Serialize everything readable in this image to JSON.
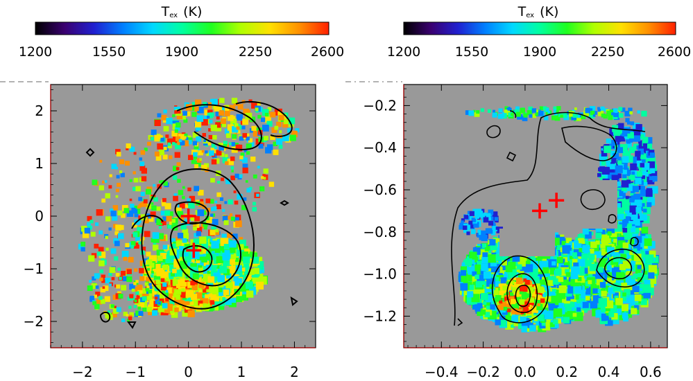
{
  "chart_data": [
    {
      "type": "heatmap",
      "title": "",
      "colorbar": {
        "label": "T",
        "label_sub": "ex",
        "units": "(K)",
        "ticks": [
          "1200",
          "1550",
          "1900",
          "2250",
          "2600"
        ],
        "range": [
          1200,
          2600
        ],
        "colormap": [
          "#000000",
          "#3a0070",
          "#2020d0",
          "#0080ff",
          "#00d8ff",
          "#00ffa0",
          "#20ff20",
          "#b0ff00",
          "#ffe000",
          "#ff9000",
          "#ff2000"
        ]
      },
      "xlim": [
        -2.6,
        2.4
      ],
      "ylim": [
        -2.5,
        2.5
      ],
      "x_ticks": [
        "−2",
        "−1",
        "0",
        "1",
        "2"
      ],
      "x_tick_values": [
        -2,
        -1,
        0,
        1,
        2
      ],
      "y_ticks": [
        "−2",
        "−1",
        "0",
        "1",
        "2"
      ],
      "y_tick_values": [
        -2,
        -1,
        0,
        1,
        2
      ],
      "background": "#999999",
      "markers": [
        {
          "x": 0.0,
          "y": 0.0,
          "symbol": "cross",
          "color": "#ff0000"
        },
        {
          "x": 0.1,
          "y": -0.65,
          "symbol": "cross",
          "color": "#ff0000"
        }
      ]
    },
    {
      "type": "heatmap",
      "title": "",
      "colorbar": {
        "label": "T",
        "label_sub": "ex",
        "units": "(K)",
        "ticks": [
          "1200",
          "1550",
          "1900",
          "2250",
          "2600"
        ],
        "range": [
          1200,
          2600
        ],
        "colormap": [
          "#000000",
          "#3a0070",
          "#2020d0",
          "#0080ff",
          "#00d8ff",
          "#00ffa0",
          "#20ff20",
          "#b0ff00",
          "#ffe000",
          "#ff9000",
          "#ff2000"
        ]
      },
      "xlim": [
        -0.58,
        0.68
      ],
      "ylim": [
        -1.35,
        -0.1
      ],
      "x_ticks": [
        "−0.4",
        "−0.2",
        "0.0",
        "0.2",
        "0.4",
        "0.6"
      ],
      "x_tick_values": [
        -0.4,
        -0.2,
        0.0,
        0.2,
        0.4,
        0.6
      ],
      "y_ticks": [
        "−0.2",
        "−0.4",
        "−0.6",
        "−0.8",
        "−1.0",
        "−1.2"
      ],
      "y_tick_values": [
        -0.2,
        -0.4,
        -0.6,
        -0.8,
        -1.0,
        -1.2
      ],
      "background": "#999999",
      "markers": [
        {
          "x": 0.07,
          "y": -0.7,
          "symbol": "cross",
          "color": "#ff0000"
        },
        {
          "x": 0.15,
          "y": -0.65,
          "symbol": "cross",
          "color": "#ff0000"
        }
      ]
    }
  ]
}
